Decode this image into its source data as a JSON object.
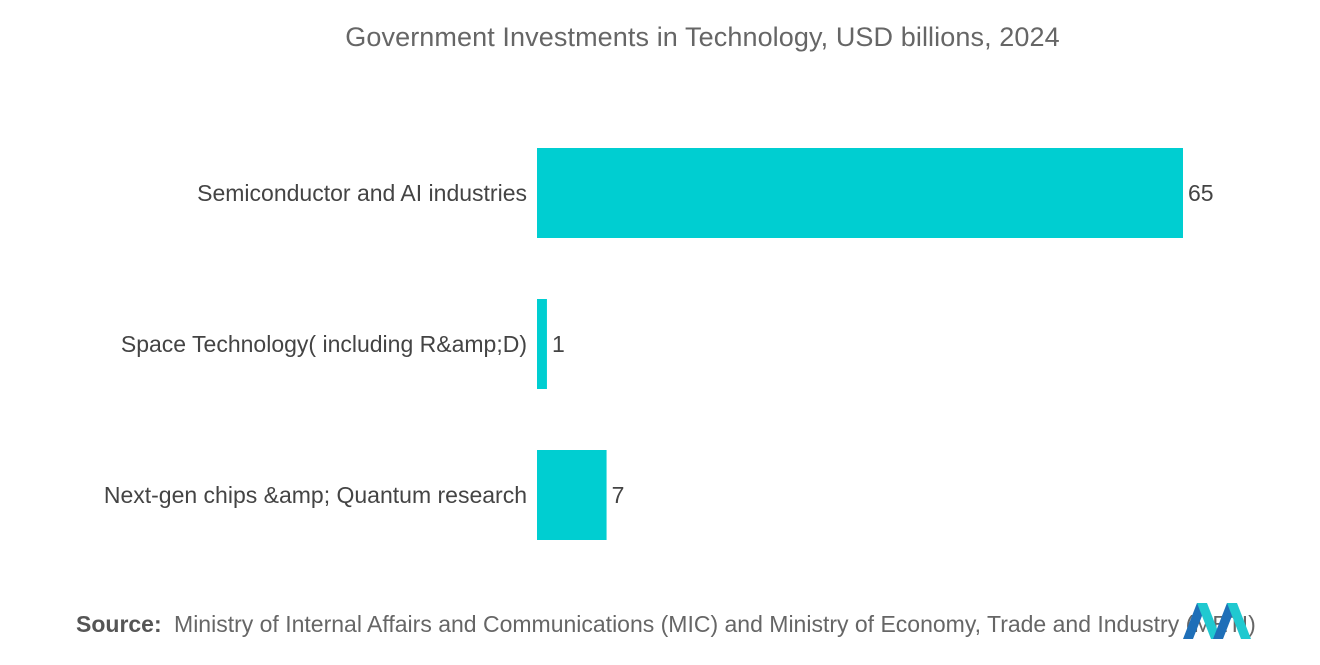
{
  "chart_data": {
    "type": "bar",
    "orientation": "horizontal",
    "title": "Government Investments in Technology, USD billions, 2024",
    "categories": [
      "Semiconductor and AI industries",
      "Space Technology( including R&amp;D)",
      "Next-gen chips &amp; Quantum research"
    ],
    "values": [
      65,
      1,
      7
    ],
    "data_labels": [
      "65",
      "1",
      "7"
    ],
    "bar_color": "#00CED1",
    "xlim": [
      0,
      65
    ],
    "grid": false,
    "legend": "none",
    "xlabel": "",
    "ylabel": ""
  },
  "source": {
    "label": "Source:",
    "text": "Ministry of Internal Affairs and Communications (MIC) and Ministry of Economy, Trade and Industry (METI)"
  },
  "logo": {
    "icon": "mordor-intelligence-logo-icon",
    "colors": [
      "#1f6fb8",
      "#20c9d0"
    ]
  }
}
